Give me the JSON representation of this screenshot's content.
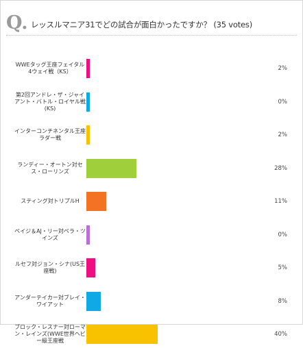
{
  "question": {
    "mark": "Q.",
    "text": "レッスルマニア31でどの試合が面白かったですか？",
    "votes": "(35 votes)"
  },
  "chart_data": {
    "type": "bar",
    "orientation": "horizontal",
    "categories": [
      "WWEタッグ王座フェイタル4ウェイ戦（KS）",
      "第2回アンドレ・ザ・ジャイアント・バトル・ロイヤル戦(KS)",
      "インターコンチネンタル王座ラダー戦",
      "ランディー・オートン対セス・ローリンズ",
      "スティング対トリプルH",
      "ペイジ＆AJ・リー対ベラ・ツインズ",
      "ルセフ対ジョン・シナ(US王座戦)",
      "アンダーテイカー対ブレイ・ワイアット",
      "ブロック・レスナー対ローマン・レインズ(WWE世界ヘビー級王座戦"
    ],
    "values": [
      2,
      0,
      2,
      28,
      11,
      0,
      5,
      8,
      40
    ],
    "value_labels": [
      "2%",
      "0%",
      "2%",
      "28%",
      "11%",
      "0%",
      "5%",
      "8%",
      "40%"
    ],
    "unit": "%",
    "colors": [
      "#ef0f80",
      "#10a9e6",
      "#f8c200",
      "#9fcf3b",
      "#f27322",
      "#b96fd8",
      "#ef0f80",
      "#10a9e6",
      "#f8c200"
    ],
    "xlim": [
      0,
      100
    ],
    "grid": false,
    "legend": "none"
  }
}
